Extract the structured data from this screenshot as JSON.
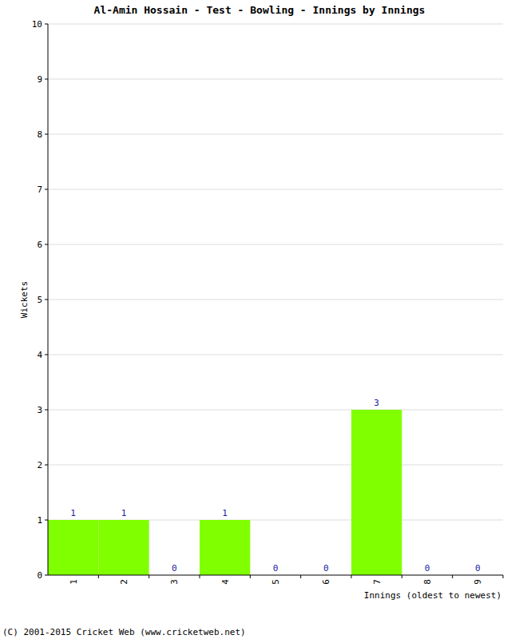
{
  "chart_data": {
    "type": "bar",
    "title": "Al-Amin Hossain - Test - Bowling - Innings by Innings",
    "x_label": "Innings (oldest to newest)",
    "y_label": "Wickets",
    "categories": [
      "1",
      "2",
      "3",
      "4",
      "5",
      "6",
      "7",
      "8",
      "9"
    ],
    "values": [
      1,
      1,
      0,
      1,
      0,
      0,
      3,
      0,
      0
    ],
    "color": "#80ff00",
    "ylim": [
      0,
      10
    ],
    "yticks": [
      0,
      1,
      2,
      3,
      4,
      5,
      6,
      7,
      8,
      9,
      10
    ],
    "grid": true,
    "data_labels": true,
    "credit": "(C) 2001-2015 Cricket Web (www.cricketweb.net)"
  }
}
